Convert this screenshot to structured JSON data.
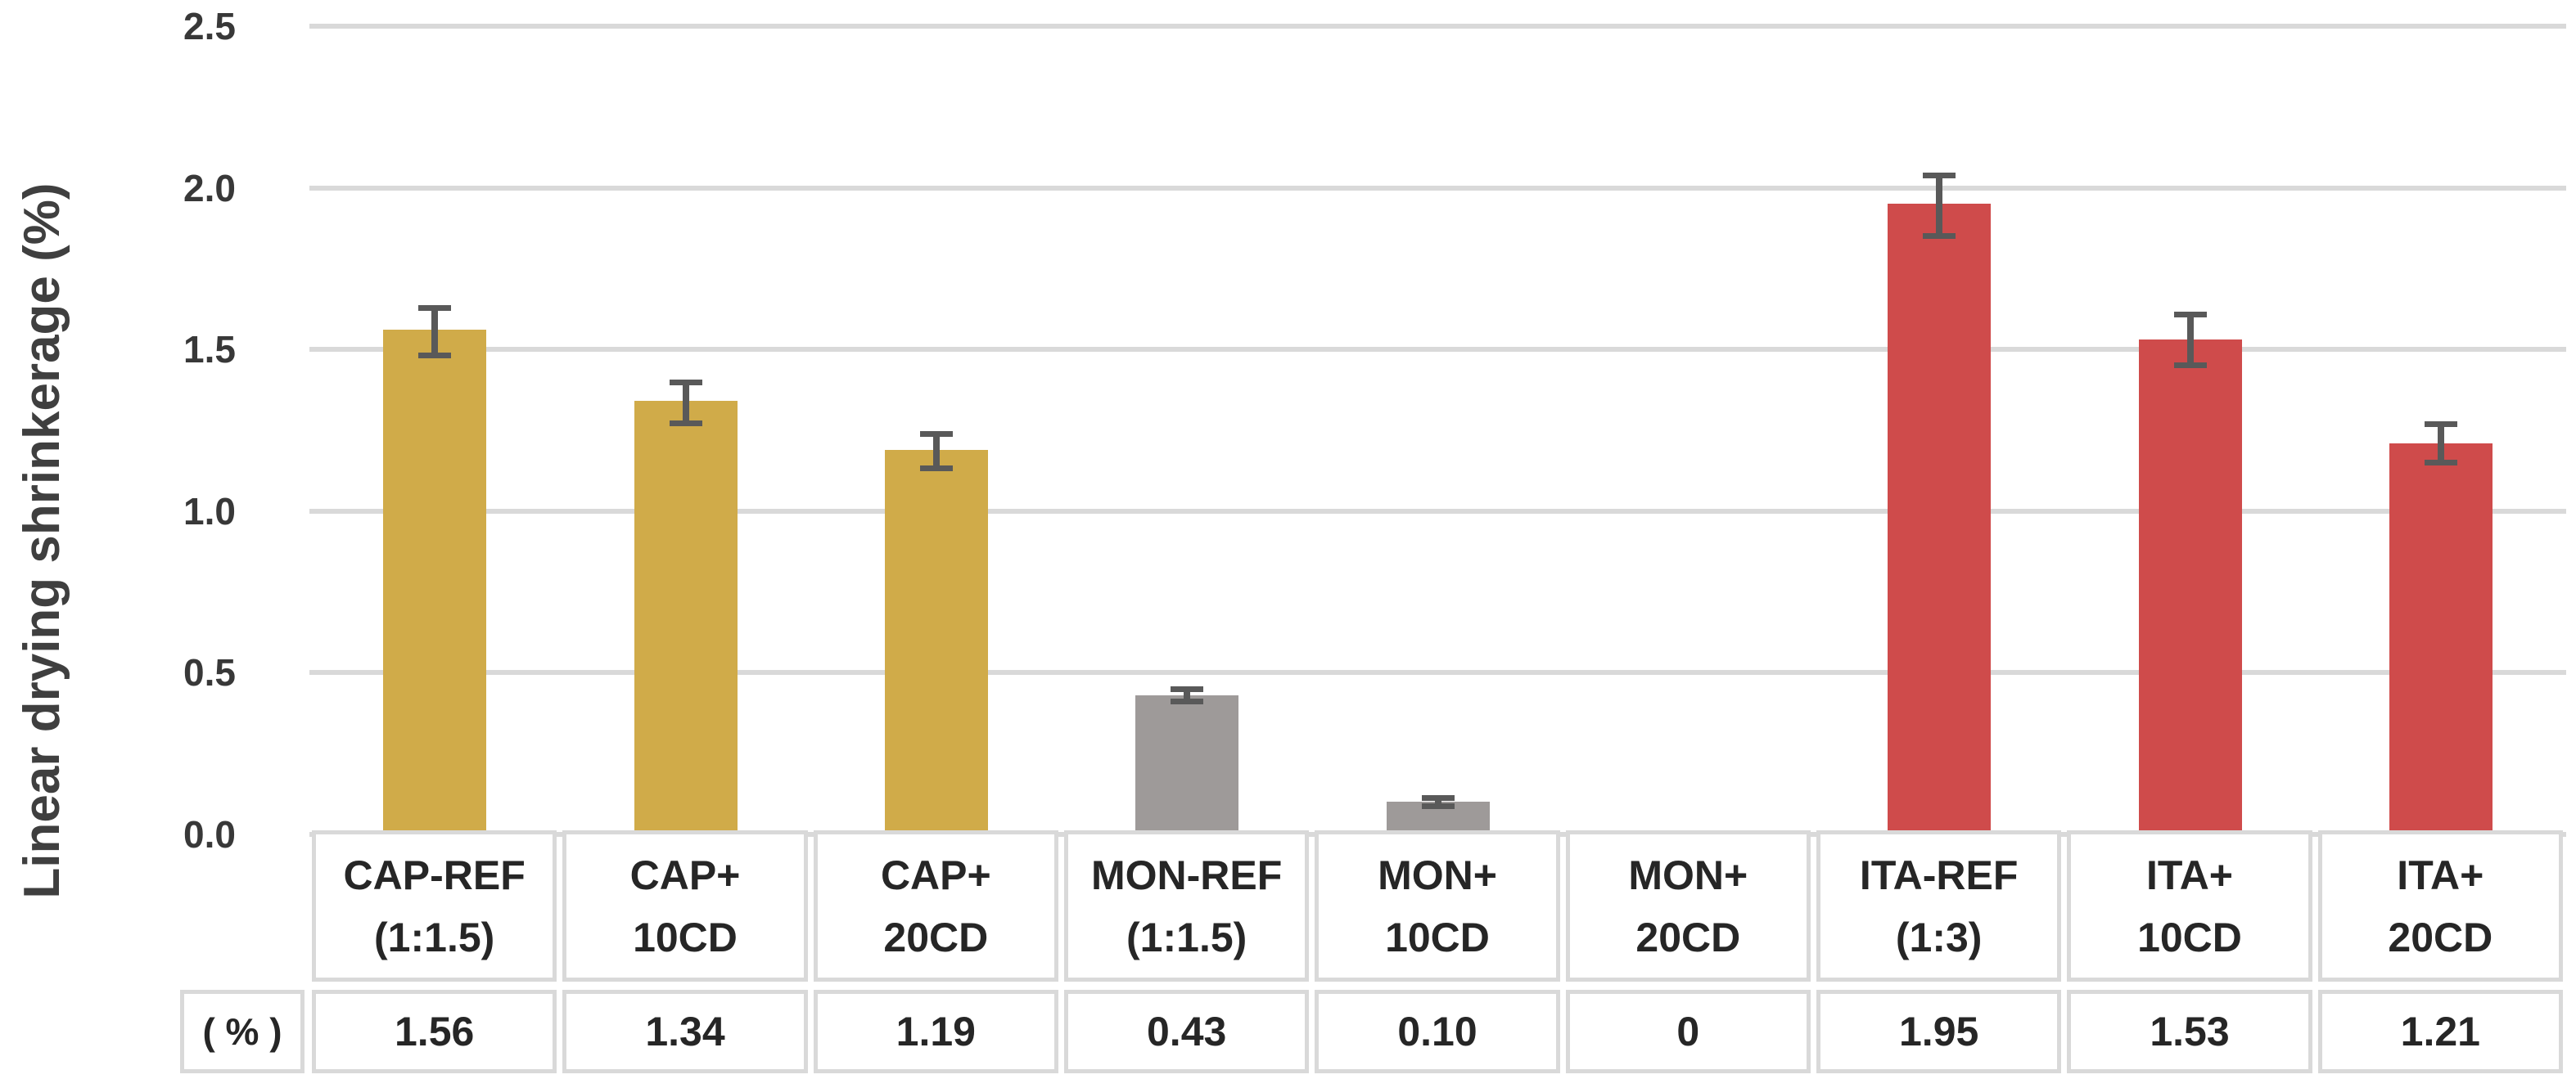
{
  "chart_data": {
    "type": "bar",
    "title": "",
    "xlabel": "",
    "ylabel": "Linear drying shrinkerage (%)",
    "ylim": [
      0,
      2.5
    ],
    "ytick_step": 0.5,
    "yticks": [
      "0.0",
      "0.5",
      "1.0",
      "1.5",
      "2.0",
      "2.5"
    ],
    "grid": true,
    "legend": false,
    "table_row_label": "( % )",
    "bars": [
      {
        "label_line1": "CAP-REF",
        "label_line2": "(1:1.5)",
        "value": 1.56,
        "display": "1.56",
        "err_plus": 0.07,
        "err_minus": 0.08,
        "color": "#D0AB49",
        "group": "CAP"
      },
      {
        "label_line1": "CAP+",
        "label_line2": "10CD",
        "value": 1.34,
        "display": "1.34",
        "err_plus": 0.06,
        "err_minus": 0.07,
        "color": "#D0AB49",
        "group": "CAP"
      },
      {
        "label_line1": "CAP+",
        "label_line2": "20CD",
        "value": 1.19,
        "display": "1.19",
        "err_plus": 0.05,
        "err_minus": 0.06,
        "color": "#D0AB49",
        "group": "CAP"
      },
      {
        "label_line1": "MON-REF",
        "label_line2": "(1:1.5)",
        "value": 0.43,
        "display": "0.43",
        "err_plus": 0.02,
        "err_minus": 0.02,
        "color": "#9E9A99",
        "group": "MON"
      },
      {
        "label_line1": "MON+",
        "label_line2": "10CD",
        "value": 0.1,
        "display": "0.10",
        "err_plus": 0.015,
        "err_minus": 0.015,
        "color": "#9E9A99",
        "group": "MON"
      },
      {
        "label_line1": "MON+",
        "label_line2": "20CD",
        "value": 0,
        "display": "0",
        "err_plus": null,
        "err_minus": null,
        "color": "#9E9A99",
        "group": "MON"
      },
      {
        "label_line1": "ITA-REF",
        "label_line2": "(1:3)",
        "value": 1.95,
        "display": "1.95",
        "err_plus": 0.09,
        "err_minus": 0.1,
        "color": "#CF4B4B",
        "group": "ITA"
      },
      {
        "label_line1": "ITA+",
        "label_line2": "10CD",
        "value": 1.53,
        "display": "1.53",
        "err_plus": 0.08,
        "err_minus": 0.08,
        "color": "#CF4B4B",
        "group": "ITA"
      },
      {
        "label_line1": "ITA+",
        "label_line2": "20CD",
        "value": 1.21,
        "display": "1.21",
        "err_plus": 0.06,
        "err_minus": 0.06,
        "color": "#CF4B4B",
        "group": "ITA"
      }
    ],
    "colors": {
      "cap_bar": "#D0AB49",
      "mon_bar": "#9E9A99",
      "ita_bar": "#CF4B4B",
      "error_bar": "#595959",
      "gridline": "#D9D9D9",
      "table_border": "#D9D9D9",
      "text": "#262626",
      "axis_text": "#383838"
    }
  }
}
